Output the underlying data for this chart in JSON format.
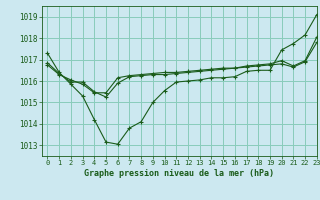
{
  "title": "Graphe pression niveau de la mer (hPa)",
  "background_color": "#cce8f0",
  "grid_color": "#88ccbb",
  "line_color": "#1a5c1a",
  "xlim": [
    -0.5,
    23
  ],
  "ylim": [
    1012.5,
    1019.5
  ],
  "yticks": [
    1013,
    1014,
    1015,
    1016,
    1017,
    1018,
    1019
  ],
  "xticks": [
    0,
    1,
    2,
    3,
    4,
    5,
    6,
    7,
    8,
    9,
    10,
    11,
    12,
    13,
    14,
    15,
    16,
    17,
    18,
    19,
    20,
    21,
    22,
    23
  ],
  "series": [
    [
      1017.3,
      1016.4,
      1015.85,
      1015.3,
      1014.2,
      1013.15,
      1013.05,
      1013.8,
      1014.1,
      1015.0,
      1015.55,
      1015.95,
      1016.0,
      1016.05,
      1016.15,
      1016.15,
      1016.2,
      1016.45,
      1016.5,
      1016.5,
      1017.45,
      1017.75,
      1018.15,
      1019.1
    ],
    [
      1016.85,
      1016.35,
      1015.95,
      1015.95,
      1015.5,
      1015.25,
      1015.9,
      1016.2,
      1016.25,
      1016.3,
      1016.3,
      1016.35,
      1016.4,
      1016.45,
      1016.5,
      1016.55,
      1016.6,
      1016.7,
      1016.75,
      1016.8,
      1016.95,
      1016.7,
      1016.95,
      1018.05
    ],
    [
      1016.75,
      1016.3,
      1016.05,
      1015.85,
      1015.45,
      1015.45,
      1016.15,
      1016.25,
      1016.3,
      1016.35,
      1016.4,
      1016.4,
      1016.45,
      1016.5,
      1016.55,
      1016.6,
      1016.6,
      1016.65,
      1016.7,
      1016.75,
      1016.8,
      1016.65,
      1016.9,
      1017.8
    ]
  ]
}
